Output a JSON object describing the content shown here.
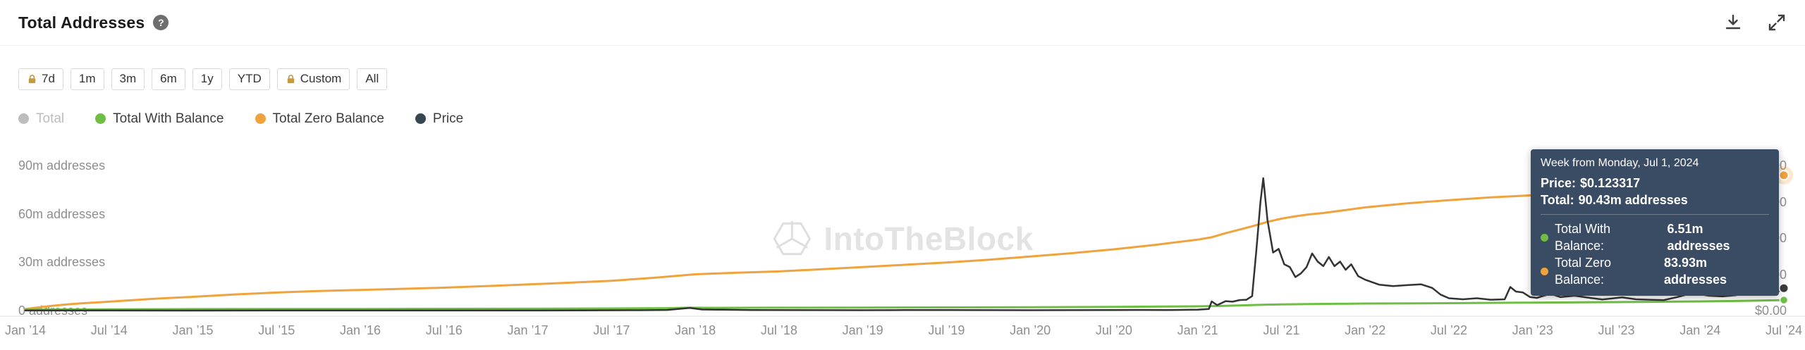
{
  "header": {
    "title": "Total Addresses",
    "help_glyph": "?",
    "actions": [
      {
        "name": "download",
        "icon": "download-icon"
      },
      {
        "name": "fullscreen",
        "icon": "fullscreen-expand-icon"
      }
    ]
  },
  "time_ranges": [
    {
      "label": "7d",
      "locked": true
    },
    {
      "label": "1m",
      "locked": false
    },
    {
      "label": "3m",
      "locked": false
    },
    {
      "label": "6m",
      "locked": false
    },
    {
      "label": "1y",
      "locked": false
    },
    {
      "label": "YTD",
      "locked": false
    },
    {
      "label": "Custom",
      "locked": true
    },
    {
      "label": "All",
      "locked": false
    }
  ],
  "legend": [
    {
      "label": "Total",
      "color": "#BDBDBD",
      "active": false
    },
    {
      "label": "Total With Balance",
      "color": "#6FBE44",
      "active": true
    },
    {
      "label": "Total Zero Balance",
      "color": "#F0A23C",
      "active": true
    },
    {
      "label": "Price",
      "color": "#37474F",
      "active": true
    }
  ],
  "watermark": {
    "text": "IntoTheBlock"
  },
  "tooltip": {
    "bg_color": "#3A4B64",
    "title": "Week from Monday, Jul 1, 2024",
    "price_label": "Price:",
    "price_value": "$0.123317",
    "total_label": "Total:",
    "total_value": "90.43m addresses",
    "series": [
      {
        "label": "Total With Balance:",
        "value": "6.51m addresses",
        "color": "#6FBE44"
      },
      {
        "label": "Total Zero Balance:",
        "value": "83.93m addresses",
        "color": "#F0A23C"
      }
    ]
  },
  "chart_data": {
    "type": "line",
    "title": "Total Addresses",
    "grid": false,
    "legend_position": "top-left",
    "hidden_series": [
      "Total"
    ],
    "x_axis": {
      "unit": "months since Jan 2014",
      "range": [
        0,
        126
      ],
      "tick_positions": [
        0,
        6,
        12,
        18,
        24,
        30,
        36,
        42,
        48,
        54,
        60,
        66,
        72,
        78,
        84,
        90,
        96,
        102,
        108,
        114,
        120,
        126
      ],
      "tick_labels": [
        "Jan ’14",
        "Jul ’14",
        "Jan ’15",
        "Jul ’15",
        "Jan ’16",
        "Jul ’16",
        "Jan ’17",
        "Jul ’17",
        "Jan ’18",
        "Jul ’18",
        "Jan ’19",
        "Jul ’19",
        "Jan ’20",
        "Jul ’20",
        "Jan ’21",
        "Jul ’21",
        "Jan ’22",
        "Jul ’22",
        "Jan ’23",
        "Jul ’23",
        "Jan ’24",
        "Jul ’24"
      ]
    },
    "y_axis_left": {
      "unit": "addresses (millions)",
      "max": 90,
      "ticks": [
        90,
        60,
        30,
        0
      ],
      "tick_labels": [
        "90m addresses",
        "60m addresses",
        "30m addresses",
        "0 addresses"
      ]
    },
    "y_axis_right": {
      "unit": "USD",
      "max": 0.8,
      "ticks": [
        0.8,
        0.6,
        0.4,
        0.2,
        0
      ],
      "tick_labels": [
        "$0.800000",
        "$0.600000",
        "$0.400000",
        "$0.200000",
        "$0.00"
      ]
    },
    "series": [
      {
        "name": "Total Zero Balance",
        "color": "#F0A23C",
        "axis": "left",
        "unit": "m addresses",
        "points": [
          [
            0,
            1.0
          ],
          [
            1,
            2.0
          ],
          [
            2,
            3.0
          ],
          [
            3,
            3.8
          ],
          [
            4,
            4.5
          ],
          [
            5,
            5.0
          ],
          [
            6,
            5.5
          ],
          [
            9,
            7.2
          ],
          [
            12,
            8.5
          ],
          [
            15,
            10.0
          ],
          [
            18,
            11.2
          ],
          [
            21,
            12.1
          ],
          [
            24,
            12.8
          ],
          [
            27,
            13.5
          ],
          [
            30,
            14.2
          ],
          [
            33,
            15.2
          ],
          [
            36,
            16.2
          ],
          [
            39,
            17.3
          ],
          [
            42,
            18.5
          ],
          [
            45,
            20.3
          ],
          [
            48,
            22.5
          ],
          [
            51,
            23.5
          ],
          [
            54,
            24.3
          ],
          [
            57,
            25.6
          ],
          [
            60,
            27.0
          ],
          [
            63,
            28.4
          ],
          [
            66,
            29.8
          ],
          [
            69,
            31.5
          ],
          [
            72,
            33.5
          ],
          [
            75,
            35.6
          ],
          [
            78,
            38.0
          ],
          [
            81,
            40.8
          ],
          [
            84,
            44.0
          ],
          [
            85,
            45.5
          ],
          [
            86,
            48.0
          ],
          [
            87,
            50.2
          ],
          [
            88,
            52.5
          ],
          [
            89,
            55.0
          ],
          [
            90,
            57.0
          ],
          [
            91,
            58.5
          ],
          [
            92,
            59.7
          ],
          [
            93,
            60.5
          ],
          [
            96,
            64.0
          ],
          [
            99,
            66.5
          ],
          [
            102,
            68.5
          ],
          [
            105,
            70.2
          ],
          [
            108,
            71.5
          ],
          [
            111,
            73.0
          ],
          [
            114,
            74.5
          ],
          [
            117,
            76.0
          ],
          [
            120,
            77.5
          ],
          [
            123,
            80.0
          ],
          [
            126,
            83.93
          ]
        ]
      },
      {
        "name": "Total With Balance",
        "color": "#6FBE44",
        "axis": "left",
        "unit": "m addresses",
        "points": [
          [
            0,
            0.5
          ],
          [
            3,
            0.65
          ],
          [
            6,
            0.75
          ],
          [
            12,
            0.9
          ],
          [
            18,
            0.97
          ],
          [
            24,
            1.02
          ],
          [
            30,
            1.08
          ],
          [
            36,
            1.12
          ],
          [
            42,
            1.3
          ],
          [
            46,
            1.5
          ],
          [
            47.6,
            1.78
          ],
          [
            49,
            1.7
          ],
          [
            54,
            1.78
          ],
          [
            60,
            1.85
          ],
          [
            66,
            1.95
          ],
          [
            72,
            2.05
          ],
          [
            78,
            2.3
          ],
          [
            84,
            2.6
          ],
          [
            86,
            2.95
          ],
          [
            88.7,
            3.6
          ],
          [
            90,
            3.8
          ],
          [
            92,
            4.0
          ],
          [
            96,
            4.35
          ],
          [
            100,
            4.5
          ],
          [
            102,
            4.6
          ],
          [
            108,
            4.95
          ],
          [
            114,
            5.25
          ],
          [
            120,
            5.7
          ],
          [
            123,
            6.05
          ],
          [
            126,
            6.51
          ]
        ]
      },
      {
        "name": "Price",
        "color": "#333333",
        "axis": "right",
        "unit": "USD",
        "points": [
          [
            0,
            0.0004
          ],
          [
            3,
            0.0003
          ],
          [
            6,
            0.0002
          ],
          [
            12,
            0.00015
          ],
          [
            18,
            0.0002
          ],
          [
            24,
            0.00025
          ],
          [
            30,
            0.0002
          ],
          [
            36,
            0.0002
          ],
          [
            40,
            0.001
          ],
          [
            44,
            0.0018
          ],
          [
            46,
            0.0035
          ],
          [
            47.6,
            0.0145
          ],
          [
            48.5,
            0.006
          ],
          [
            50,
            0.0045
          ],
          [
            52,
            0.0028
          ],
          [
            56,
            0.0024
          ],
          [
            60,
            0.002
          ],
          [
            63,
            0.0029
          ],
          [
            66,
            0.0028
          ],
          [
            69,
            0.0024
          ],
          [
            72,
            0.002
          ],
          [
            75,
            0.0023
          ],
          [
            78,
            0.0026
          ],
          [
            80,
            0.0034
          ],
          [
            82,
            0.0028
          ],
          [
            84,
            0.0047
          ],
          [
            84.8,
            0.0085
          ],
          [
            85,
            0.05
          ],
          [
            85.4,
            0.03
          ],
          [
            86,
            0.052
          ],
          [
            86.5,
            0.049
          ],
          [
            87,
            0.058
          ],
          [
            87.5,
            0.06
          ],
          [
            87.9,
            0.08
          ],
          [
            88.2,
            0.33
          ],
          [
            88.5,
            0.6
          ],
          [
            88.7,
            0.73
          ],
          [
            89,
            0.5
          ],
          [
            89.4,
            0.32
          ],
          [
            89.8,
            0.34
          ],
          [
            90.2,
            0.255
          ],
          [
            90.6,
            0.24
          ],
          [
            91,
            0.185
          ],
          [
            91.4,
            0.205
          ],
          [
            91.8,
            0.24
          ],
          [
            92.2,
            0.315
          ],
          [
            92.6,
            0.27
          ],
          [
            93,
            0.245
          ],
          [
            93.4,
            0.295
          ],
          [
            93.8,
            0.245
          ],
          [
            94.2,
            0.27
          ],
          [
            94.6,
            0.225
          ],
          [
            95,
            0.255
          ],
          [
            95.5,
            0.19
          ],
          [
            96,
            0.17
          ],
          [
            97,
            0.143
          ],
          [
            98,
            0.135
          ],
          [
            99,
            0.14
          ],
          [
            100,
            0.145
          ],
          [
            100.8,
            0.125
          ],
          [
            101.4,
            0.088
          ],
          [
            102,
            0.068
          ],
          [
            103,
            0.062
          ],
          [
            104,
            0.068
          ],
          [
            105,
            0.06
          ],
          [
            106,
            0.062
          ],
          [
            106.4,
            0.13
          ],
          [
            106.8,
            0.105
          ],
          [
            107.3,
            0.1
          ],
          [
            107.8,
            0.075
          ],
          [
            108.3,
            0.07
          ],
          [
            108.8,
            0.082
          ],
          [
            109.3,
            0.092
          ],
          [
            110,
            0.074
          ],
          [
            111,
            0.082
          ],
          [
            112,
            0.071
          ],
          [
            113,
            0.061
          ],
          [
            113.6,
            0.066
          ],
          [
            114.4,
            0.073
          ],
          [
            115.4,
            0.062
          ],
          [
            116.4,
            0.06
          ],
          [
            117.4,
            0.058
          ],
          [
            118.4,
            0.075
          ],
          [
            119.4,
            0.096
          ],
          [
            120,
            0.09
          ],
          [
            120.6,
            0.082
          ],
          [
            121.6,
            0.078
          ],
          [
            122.6,
            0.085
          ],
          [
            123.2,
            0.13
          ],
          [
            123.7,
            0.225
          ],
          [
            124.2,
            0.155
          ],
          [
            124.7,
            0.165
          ],
          [
            125.2,
            0.125
          ],
          [
            125.6,
            0.105
          ],
          [
            126,
            0.123317
          ]
        ]
      }
    ],
    "highlighted_week": {
      "date": "Week from Monday, Jul 1, 2024",
      "price_usd": 0.123317,
      "total_addresses_m": 90.43,
      "total_with_balance_m": 6.51,
      "total_zero_balance_m": 83.93
    }
  }
}
